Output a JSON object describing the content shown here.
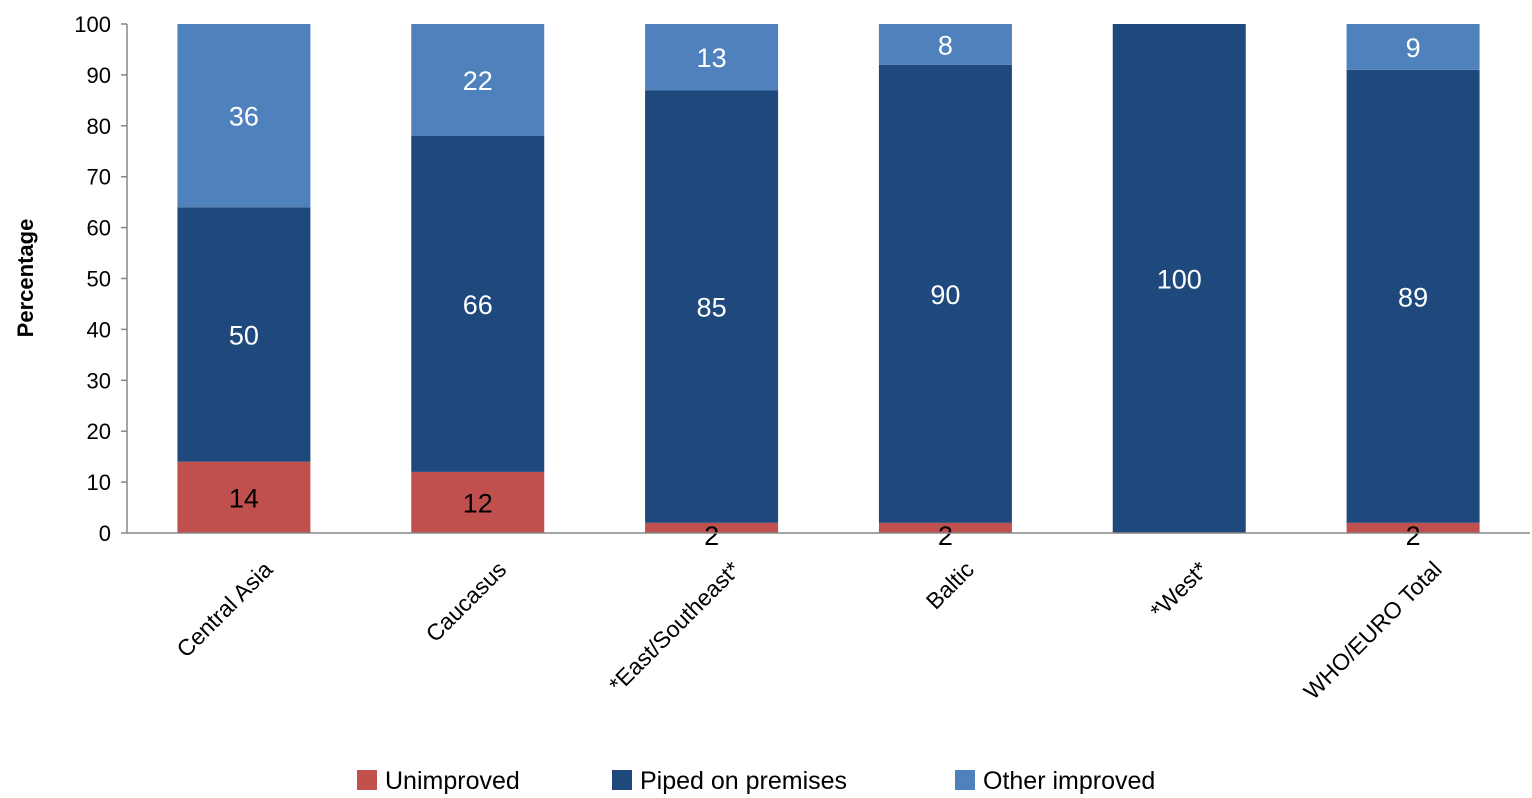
{
  "chart_data": {
    "type": "bar",
    "stacked": true,
    "ylabel": "Percentage",
    "xlabel": "",
    "title": "",
    "ylim": [
      0,
      100
    ],
    "yticks": [
      0,
      10,
      20,
      30,
      40,
      50,
      60,
      70,
      80,
      90,
      100
    ],
    "grid": false,
    "legend_position": "bottom",
    "categories": [
      "Central Asia",
      "Caucasus",
      "*East/Southeast*",
      "Baltic",
      "*West*",
      "WHO/EURO Total"
    ],
    "series": [
      {
        "name": "Unimproved",
        "color": "#c0504d",
        "label_color": "#000000",
        "values": [
          14,
          12,
          2,
          2,
          0,
          2
        ],
        "labels": [
          "14",
          "12",
          "2",
          "2",
          "",
          "2"
        ]
      },
      {
        "name": "Piped on premises",
        "color": "#1f497d",
        "label_color": "#ffffff",
        "values": [
          50,
          66,
          85,
          90,
          100,
          89
        ],
        "labels": [
          "50",
          "66",
          "85",
          "90",
          "100",
          "89"
        ]
      },
      {
        "name": "Other improved",
        "color": "#4f81bd",
        "label_color": "#ffffff",
        "values": [
          36,
          22,
          13,
          8,
          0,
          9
        ],
        "labels": [
          "36",
          "22",
          "13",
          "8",
          "",
          "9"
        ]
      }
    ]
  }
}
